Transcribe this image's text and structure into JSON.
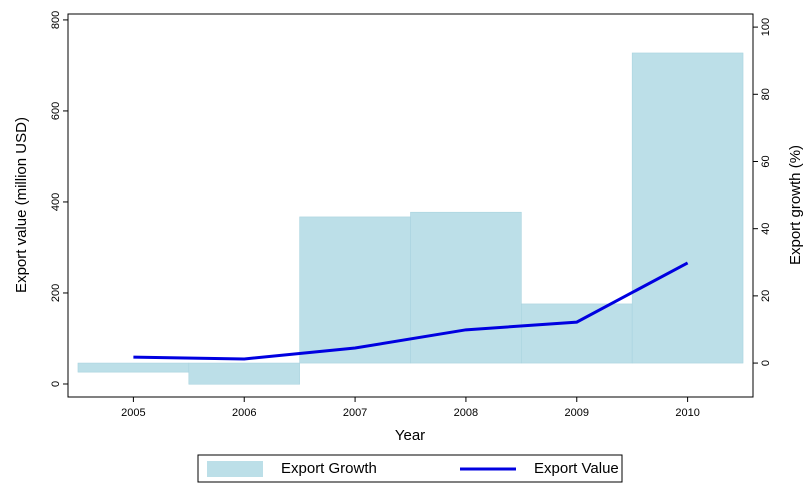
{
  "chart_data": {
    "type": "combo",
    "x": [
      2005,
      2006,
      2007,
      2008,
      2009,
      2010
    ],
    "xlabel": "Year",
    "ylabel": "Export value (million USD)",
    "y2label": "Export growth (%)",
    "xlim": [
      2004.41,
      2010.59
    ],
    "xticks": [
      2005,
      2006,
      2007,
      2008,
      2009,
      2010
    ],
    "ylim": [
      -28.6,
      813
    ],
    "yticks": [
      0,
      200,
      400,
      600,
      800
    ],
    "y2lim": [
      -10.1,
      103.9
    ],
    "y2ticks": [
      0,
      20,
      40,
      60,
      80,
      100
    ],
    "legend": "bottom",
    "series": [
      {
        "name": "Export Growth",
        "type": "bar",
        "axis": "y2",
        "color": "#bcdfe8",
        "values": [
          -2.7,
          -6.3,
          43.5,
          44.9,
          17.6,
          92.3
        ]
      },
      {
        "name": "Export Value",
        "type": "line",
        "color": "#0000e0",
        "values": [
          59,
          55,
          79,
          119,
          136,
          266
        ]
      }
    ]
  }
}
